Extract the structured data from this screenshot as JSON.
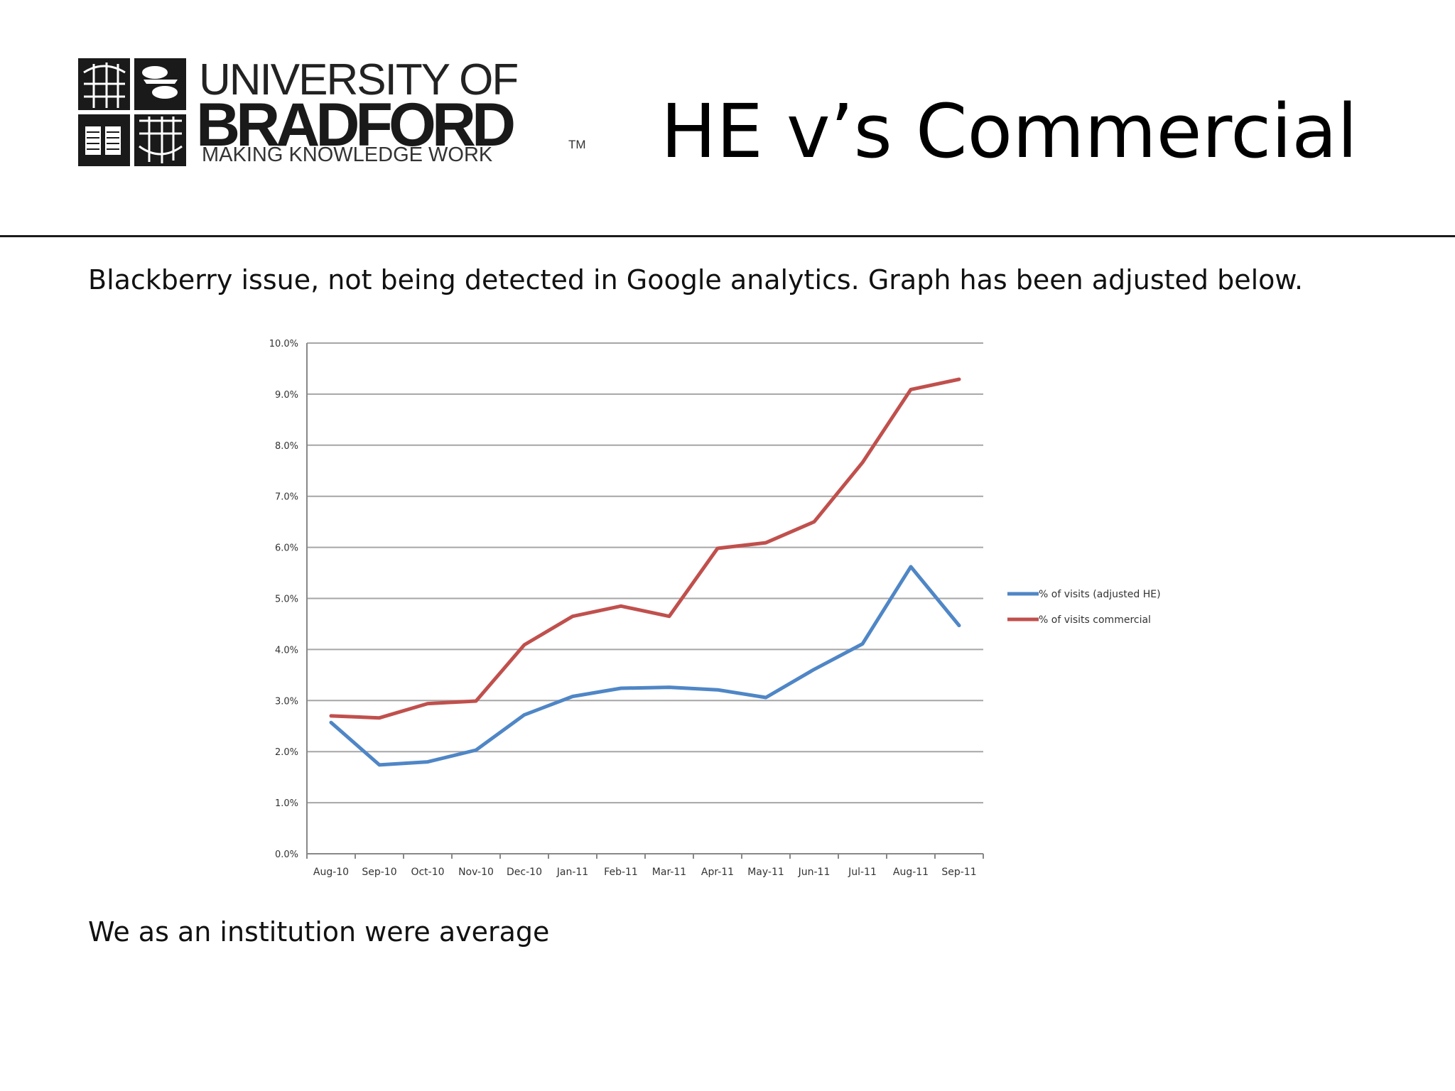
{
  "logo": {
    "line1": "UNIVERSITY OF",
    "line2": "BRADFORD",
    "line3": "MAKING KNOWLEDGE WORK",
    "tm": "TM"
  },
  "title": "HE v’s Commercial",
  "subtitle": "Blackberry issue, not being detected in Google analytics. Graph has been adjusted below.",
  "footer": "We as an institution were average",
  "colors": {
    "series_he": "#4f86c6",
    "series_commercial": "#c0504d",
    "gridline": "#a6a6a6"
  },
  "chart_data": {
    "type": "line",
    "categories": [
      "Aug-10",
      "Sep-10",
      "Oct-10",
      "Nov-10",
      "Dec-10",
      "Jan-11",
      "Feb-11",
      "Mar-11",
      "Apr-11",
      "May-11",
      "Jun-11",
      "Jul-11",
      "Aug-11",
      "Sep-11"
    ],
    "series": [
      {
        "name": "% of visits (adjusted HE)",
        "color": "#4f86c6",
        "values": [
          2.57,
          1.74,
          1.8,
          2.03,
          2.72,
          3.08,
          3.24,
          3.26,
          3.21,
          3.06,
          3.61,
          4.11,
          5.62,
          4.47
        ]
      },
      {
        "name": "% of visits commercial",
        "color": "#c0504d",
        "values": [
          2.7,
          2.66,
          2.94,
          2.99,
          4.09,
          4.65,
          4.85,
          4.65,
          5.98,
          6.09,
          6.5,
          7.66,
          9.09,
          9.29
        ]
      }
    ],
    "ylim": [
      0,
      10
    ],
    "ytick_labels": [
      "0.0%",
      "1.0%",
      "2.0%",
      "3.0%",
      "4.0%",
      "5.0%",
      "6.0%",
      "7.0%",
      "8.0%",
      "9.0%",
      "10.0%"
    ],
    "grid": true,
    "legend_position": "right"
  }
}
